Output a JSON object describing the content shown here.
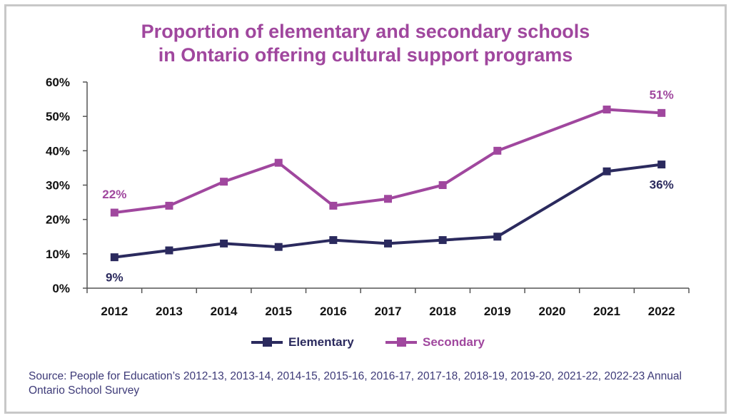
{
  "chart_data": {
    "type": "line",
    "title_lines": [
      "Proportion of elementary and secondary schools",
      "in Ontario offering cultural support programs"
    ],
    "categories": [
      "2012",
      "2013",
      "2014",
      "2015",
      "2016",
      "2017",
      "2018",
      "2019",
      "2020",
      "2021",
      "2022"
    ],
    "ylim": [
      0,
      60
    ],
    "yticks": [
      0,
      10,
      20,
      30,
      40,
      50,
      60
    ],
    "ytick_labels": [
      "0%",
      "10%",
      "20%",
      "30%",
      "40%",
      "50%",
      "60%"
    ],
    "series": [
      {
        "name": "Elementary",
        "color": "#2b2a5e",
        "values": [
          9,
          11,
          13,
          12,
          14,
          13,
          14,
          15,
          null,
          34,
          36
        ]
      },
      {
        "name": "Secondary",
        "color": "#a0479e",
        "values": [
          22,
          24,
          31,
          36.5,
          24,
          26,
          30,
          40,
          null,
          52,
          51
        ]
      }
    ],
    "annotations": [
      {
        "series": "Elementary",
        "category": "2012",
        "text": "9%",
        "position": "below"
      },
      {
        "series": "Secondary",
        "category": "2012",
        "text": "22%",
        "position": "above"
      },
      {
        "series": "Elementary",
        "category": "2022",
        "text": "36%",
        "position": "below"
      },
      {
        "series": "Secondary",
        "category": "2022",
        "text": "51%",
        "position": "above"
      }
    ],
    "legend_position": "bottom-center"
  },
  "source": "Source: People for Education’s 2012-13, 2013-14, 2014-15, 2015-16, 2016-17, 2017-18, 2018-19, 2019-20, 2021-22, 2022-23 Annual Ontario School Survey"
}
